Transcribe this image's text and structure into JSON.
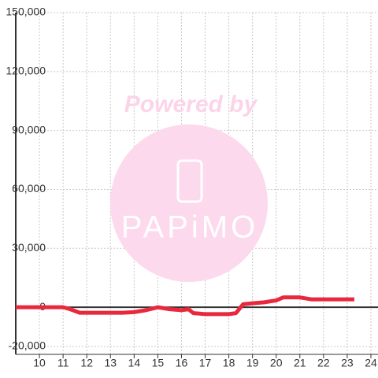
{
  "chart_data": {
    "type": "line",
    "watermark": {
      "line1": "Powered by",
      "line2": "PAPiMO"
    },
    "x": [
      9,
      11,
      11.3,
      11.7,
      13.5,
      14,
      14.5,
      15,
      15.5,
      16,
      16.3,
      16.5,
      17,
      18,
      18.3,
      18.6,
      19,
      19.5,
      20,
      20.3,
      21,
      21.5,
      23.3
    ],
    "series": [
      {
        "color": "#e8283c",
        "values": [
          0,
          0,
          -1000,
          -2800,
          -2800,
          -2500,
          -1500,
          0,
          -1000,
          -1500,
          -1000,
          -3000,
          -3500,
          -3500,
          -3000,
          1500,
          2000,
          2500,
          3500,
          5000,
          5000,
          4000,
          4000
        ]
      }
    ],
    "xlim": [
      9,
      24.3
    ],
    "xticks": [
      10,
      11,
      12,
      13,
      14,
      15,
      16,
      17,
      18,
      19,
      20,
      21,
      22,
      23,
      24
    ],
    "ylim": [
      -24000,
      150000
    ],
    "yticks": [
      {
        "value": -20000,
        "label": "-20,000"
      },
      0,
      {
        "value": 30000,
        "label": "30,000"
      },
      {
        "value": 60000,
        "label": "60,000"
      },
      {
        "value": 90000,
        "label": "90,000"
      },
      {
        "value": 120000,
        "label": "120,000"
      },
      {
        "value": 150000,
        "label": "150,000"
      }
    ],
    "grid": true
  }
}
